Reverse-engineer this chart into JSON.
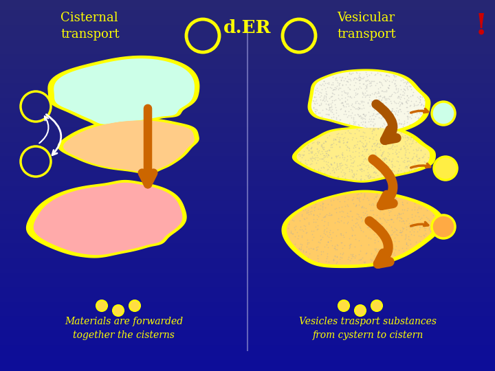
{
  "title_left": "Cisternal\ntransport",
  "title_right": "Vesicular\ntransport",
  "title_center": "d.ER",
  "exclamation": "!",
  "caption_left": "Materials are forwarded\ntogether the cisterns",
  "caption_right": "Vesicles trasport substances\nfrom cystern to cistern",
  "title_color": "#ffff00",
  "caption_color": "#ffff00",
  "dER_color": "#ffff00",
  "exclamation_color": "#cc0000",
  "yellow_border": "#ffff00",
  "cistern_left_top_fill": "#ccffe8",
  "cistern_left_mid_fill": "#ffcc88",
  "cistern_left_bot_fill": "#ffaaaa",
  "cistern_right_top_fill": "#f8f8e8",
  "cistern_right_mid_fill": "#ffee88",
  "cistern_right_bot_fill": "#ffcc66",
  "arrow_down_color": "#cc6600",
  "arrow_curve_color": "#cc6600",
  "divider_color": "#8888cc",
  "small_circle_left_color": "#ffff00",
  "vesicle_right_colors": [
    "#ccffe8",
    "#ffee44",
    "#ffaa44"
  ],
  "dot_color": "#ffdd44"
}
